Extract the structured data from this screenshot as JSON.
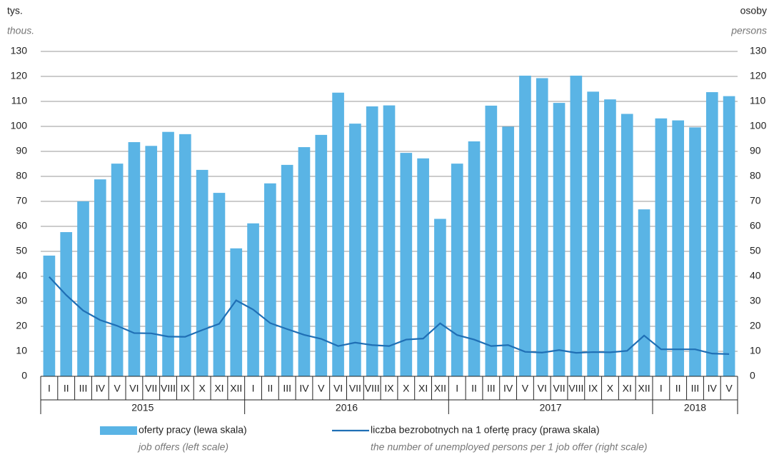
{
  "chart_data": {
    "type": "bar_line",
    "y_label": "tys.",
    "y_label_en": "thous.",
    "y2_label": "osoby",
    "y2_label_en": "persons",
    "categories": [
      "I",
      "II",
      "III",
      "IV",
      "V",
      "VI",
      "VII",
      "VIII",
      "IX",
      "X",
      "XI",
      "XII",
      "I",
      "II",
      "III",
      "IV",
      "V",
      "VI",
      "VII",
      "VIII",
      "IX",
      "X",
      "XI",
      "XII",
      "I",
      "II",
      "III",
      "IV",
      "V",
      "VI",
      "VII",
      "VIII",
      "IX",
      "X",
      "XI",
      "XII",
      "I",
      "II",
      "III",
      "IV",
      "V"
    ],
    "x_groups": [
      "2015",
      "2016",
      "2017",
      "2018"
    ],
    "ylim": [
      0,
      130
    ],
    "yticks": [
      0,
      10,
      20,
      30,
      40,
      50,
      60,
      70,
      80,
      90,
      100,
      110,
      120,
      130
    ],
    "y2lim": [
      0,
      130
    ],
    "y2ticks": [
      0,
      10,
      20,
      30,
      40,
      50,
      60,
      70,
      80,
      90,
      100,
      110,
      120,
      130
    ],
    "grid": true,
    "series": [
      {
        "name": "oferty pracy (lewa skala)",
        "name_en": "job offers (left scale)",
        "kind": "bar",
        "color": "#5ab4e5",
        "values": [
          48.3,
          57.7,
          70,
          78.8,
          85.1,
          93.7,
          92.2,
          97.8,
          96.9,
          82.6,
          73.4,
          51.2,
          61.2,
          77.2,
          84.6,
          91.7,
          96.6,
          113.5,
          101.1,
          108,
          108.4,
          89.4,
          87.2,
          63,
          85.1,
          94,
          108.3,
          99.9,
          120.3,
          119.3,
          109.4,
          120.3,
          113.9,
          110.8,
          105,
          66.8,
          103.2,
          102.4,
          99.6,
          113.7,
          112.1
        ]
      },
      {
        "name": "liczba bezrobotnych na 1 ofertę pracy (prawa skala)",
        "name_en": "the number of unemployed persons per 1 job offer (right scale)",
        "kind": "line",
        "axis": "y2",
        "color": "#1f6fb5",
        "values": [
          39.8,
          32.5,
          26.3,
          22.5,
          20.2,
          17.3,
          17.2,
          15.9,
          15.8,
          18.5,
          21,
          30.4,
          26.7,
          21.3,
          18.9,
          16.6,
          15,
          12.1,
          13.5,
          12.5,
          12.1,
          14.7,
          15.1,
          21.2,
          16.5,
          14.7,
          12.1,
          12.5,
          9.8,
          9.5,
          10.5,
          9.4,
          9.7,
          9.6,
          10.2,
          16.3,
          10.8,
          10.8,
          10.8,
          9.1,
          8.9
        ]
      }
    ]
  }
}
